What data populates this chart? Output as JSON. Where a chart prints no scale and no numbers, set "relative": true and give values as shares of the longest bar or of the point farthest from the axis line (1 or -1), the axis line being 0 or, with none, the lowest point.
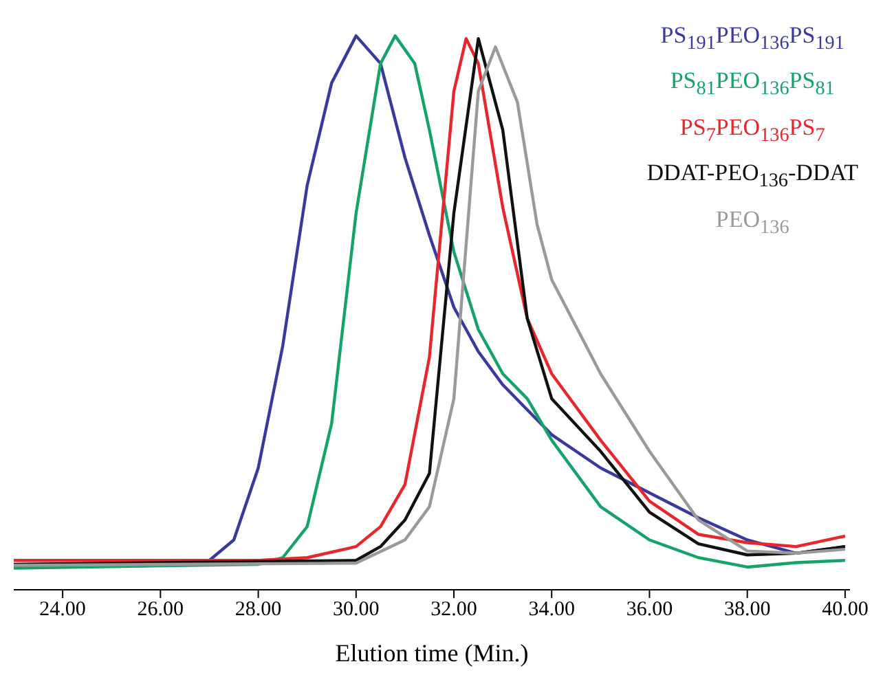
{
  "chart_data": {
    "type": "line",
    "relative": true,
    "xlabel": "Elution time (Min.)",
    "xlim": [
      23,
      40.1
    ],
    "xticks": [
      {
        "value": 24,
        "label": "24.00"
      },
      {
        "value": 26,
        "label": "26.00"
      },
      {
        "value": 28,
        "label": "28.00"
      },
      {
        "value": 30,
        "label": "30.00"
      },
      {
        "value": 32,
        "label": "32.00"
      },
      {
        "value": 34,
        "label": "34.00"
      },
      {
        "value": 36,
        "label": "36.00"
      },
      {
        "value": 38,
        "label": "38.00"
      },
      {
        "value": 40,
        "label": "40.00"
      }
    ],
    "grid": false,
    "legend": "top right",
    "marker": "none",
    "line_style": "solid",
    "series": [
      {
        "name": "PS$_{191}$PEO$_{136}$PS$_{191}$",
        "color": "#3a3a9e",
        "x": [
          23,
          26,
          27,
          27.5,
          28,
          28.5,
          29,
          29.5,
          30,
          30.5,
          31,
          31.5,
          32,
          32.5,
          33,
          34,
          35,
          36,
          37,
          38,
          39,
          40
        ],
        "values": [
          0.041,
          0.046,
          0.053,
          0.09,
          0.22,
          0.44,
          0.73,
          0.915,
          1.0,
          0.95,
          0.78,
          0.64,
          0.51,
          0.43,
          0.37,
          0.28,
          0.22,
          0.175,
          0.13,
          0.09,
          0.066,
          0.078
        ]
      },
      {
        "name": "PS$_{81}$PEO$_{136}$PS$_{81}$",
        "color": "#16a36a",
        "x": [
          23,
          28,
          28.5,
          29,
          29.5,
          30,
          30.5,
          30.8,
          31.2,
          31.5,
          32,
          32.5,
          33,
          33.5,
          34,
          35,
          36,
          37,
          38,
          39,
          40
        ],
        "values": [
          0.039,
          0.046,
          0.058,
          0.114,
          0.3,
          0.68,
          0.95,
          1.0,
          0.95,
          0.83,
          0.61,
          0.47,
          0.39,
          0.345,
          0.27,
          0.15,
          0.09,
          0.058,
          0.041,
          0.049,
          0.053
        ]
      },
      {
        "name": "PS$_{7}$PEO$_{136}$PS$_{7}$",
        "color": "#e8262b",
        "x": [
          23,
          28,
          29,
          30,
          30.5,
          31,
          31.5,
          32,
          32.25,
          32.5,
          33,
          33.5,
          34,
          35,
          36,
          37,
          38,
          39,
          40
        ],
        "values": [
          0.053,
          0.053,
          0.058,
          0.078,
          0.114,
          0.19,
          0.42,
          0.9,
          0.995,
          0.95,
          0.69,
          0.49,
          0.39,
          0.27,
          0.16,
          0.1,
          0.085,
          0.078,
          0.097
        ]
      },
      {
        "name": "DDAT-PEO$_{136}$-DDAT",
        "color": "#111111",
        "x": [
          23,
          30,
          30.5,
          31,
          31.5,
          32,
          32.5,
          33,
          33.5,
          34,
          35,
          36,
          37,
          38,
          39,
          40
        ],
        "values": [
          0.046,
          0.053,
          0.078,
          0.126,
          0.21,
          0.68,
          0.995,
          0.83,
          0.49,
          0.345,
          0.25,
          0.14,
          0.083,
          0.063,
          0.066,
          0.078
        ]
      },
      {
        "name": "PEO$_{136}$",
        "color": "#9a9a9a",
        "x": [
          23,
          30,
          31,
          31.5,
          32,
          32.5,
          32.85,
          33.3,
          33.7,
          34,
          35,
          36,
          37,
          38,
          39,
          40
        ],
        "values": [
          0.044,
          0.048,
          0.09,
          0.15,
          0.345,
          0.9,
          0.98,
          0.88,
          0.66,
          0.56,
          0.39,
          0.25,
          0.126,
          0.07,
          0.066,
          0.073
        ]
      }
    ]
  }
}
